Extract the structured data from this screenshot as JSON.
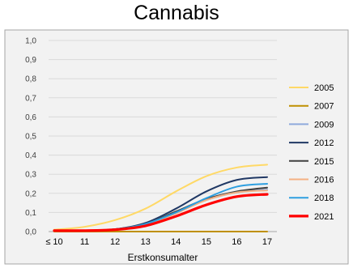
{
  "title": "Cannabis",
  "chart_data": {
    "type": "line",
    "title": "Cannabis",
    "xlabel": "Erstkonsumalter",
    "ylabel": "",
    "categories": [
      "≤ 10",
      "11",
      "12",
      "13",
      "14",
      "15",
      "16",
      "17"
    ],
    "ylim": [
      0,
      1
    ],
    "yticks": [
      "0,0",
      "0,1",
      "0,2",
      "0,3",
      "0,4",
      "0,5",
      "0,6",
      "0,7",
      "0,8",
      "0,9",
      "1,0"
    ],
    "grid": true,
    "legend_position": "right",
    "background": "#f2f2f2",
    "series": [
      {
        "name": "2005",
        "color": "#ffd966",
        "width": 2,
        "values": [
          0.01,
          0.025,
          0.06,
          0.12,
          0.21,
          0.29,
          0.335,
          0.35
        ]
      },
      {
        "name": "2007",
        "color": "#bf9000",
        "width": 2,
        "values": [
          0.0,
          0.0,
          0.0,
          0.0,
          0.0,
          0.0,
          0.0,
          0.0
        ]
      },
      {
        "name": "2009",
        "color": "#8faadc",
        "width": 2,
        "values": [
          0.005,
          0.005,
          0.012,
          0.04,
          0.1,
          0.165,
          0.205,
          0.22
        ]
      },
      {
        "name": "2012",
        "color": "#203864",
        "width": 2,
        "values": [
          0.005,
          0.005,
          0.012,
          0.045,
          0.12,
          0.21,
          0.27,
          0.285
        ]
      },
      {
        "name": "2015",
        "color": "#404040",
        "width": 2,
        "values": [
          0.005,
          0.005,
          0.012,
          0.04,
          0.105,
          0.17,
          0.21,
          0.23
        ]
      },
      {
        "name": "2016",
        "color": "#f4b183",
        "width": 2,
        "values": [
          0.005,
          0.005,
          0.01,
          0.035,
          0.095,
          0.165,
          0.205,
          0.215
        ]
      },
      {
        "name": "2018",
        "color": "#2e9fe0",
        "width": 2,
        "values": [
          0.005,
          0.005,
          0.012,
          0.04,
          0.1,
          0.175,
          0.235,
          0.25
        ]
      },
      {
        "name": "2021",
        "color": "#ff0000",
        "width": 3.2,
        "values": [
          0.005,
          0.005,
          0.01,
          0.03,
          0.08,
          0.14,
          0.183,
          0.195
        ]
      }
    ]
  }
}
